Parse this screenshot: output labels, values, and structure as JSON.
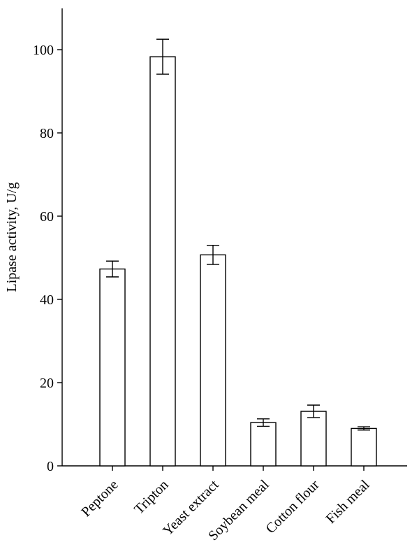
{
  "chart_data": {
    "type": "bar",
    "title": "",
    "xlabel": "",
    "ylabel": "Lipase activity, U/g",
    "ylim": [
      0,
      110
    ],
    "yticks": [
      0,
      20,
      40,
      60,
      80,
      100
    ],
    "grid": false,
    "legend": "none",
    "bar_fill": "#ffffff",
    "bar_stroke": "#000000",
    "categories": [
      "Peptone",
      "Tripton",
      "Yeast extract",
      "Soybean meal",
      "Cotton flour",
      "Fish meal"
    ],
    "values": [
      47.3,
      98.3,
      50.7,
      10.4,
      13.1,
      9.0
    ],
    "errors": [
      1.9,
      4.2,
      2.3,
      0.9,
      1.5,
      0.4
    ]
  }
}
